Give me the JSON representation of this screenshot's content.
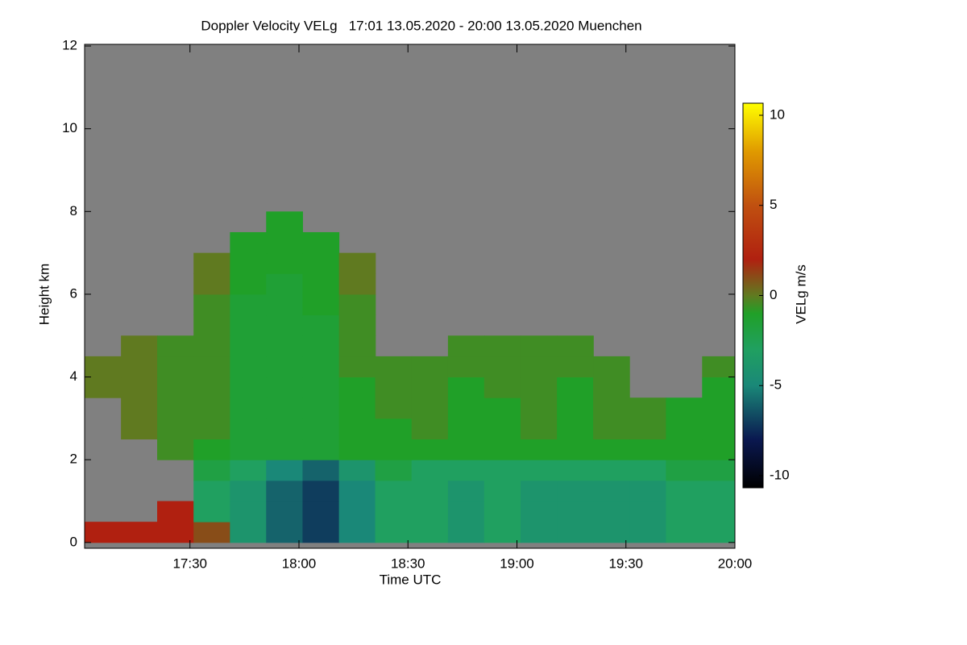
{
  "chart_data": {
    "type": "heatmap",
    "title": "Doppler Velocity VELg   17:01 13.05.2020 - 20:00 13.05.2020 Muenchen",
    "x_label": "Time UTC",
    "y_label": "Height km",
    "colorbar_label": "VELg m/s",
    "xlim": [
      17.0167,
      20.0
    ],
    "xticks": [
      {
        "value": 17.5,
        "label": "17:30"
      },
      {
        "value": 18.0,
        "label": "18:00"
      },
      {
        "value": 18.5,
        "label": "18:30"
      },
      {
        "value": 19.0,
        "label": "19:00"
      },
      {
        "value": 19.5,
        "label": "19:30"
      },
      {
        "value": 20.0,
        "label": "20:00"
      }
    ],
    "ylim": [
      -0.14,
      12.04
    ],
    "yticks": [
      0,
      2,
      4,
      6,
      8,
      10,
      12
    ],
    "clim": [
      -10.67,
      10.67
    ],
    "cticks": [
      -10,
      -5,
      0,
      5,
      10
    ],
    "missing_color": "#808080",
    "colorscale": [
      [
        0,
        "#000000"
      ],
      [
        0.125,
        "#0a1850"
      ],
      [
        0.266,
        "#1a8878"
      ],
      [
        0.36,
        "#20a060"
      ],
      [
        0.453,
        "#20a028"
      ],
      [
        0.5,
        "#607a20"
      ],
      [
        0.594,
        "#b02010"
      ],
      [
        0.734,
        "#c05010"
      ],
      [
        0.875,
        "#e09a00"
      ],
      [
        1,
        "#ffff00"
      ]
    ],
    "x": [
      17.1,
      17.267,
      17.433,
      17.6,
      17.767,
      17.933,
      18.1,
      18.267,
      18.433,
      18.6,
      18.767,
      18.933,
      19.1,
      19.267,
      19.433,
      19.6,
      19.767,
      19.933
    ],
    "y": [
      0.25,
      0.75,
      1.25,
      1.75,
      2.25,
      2.75,
      3.25,
      3.75,
      4.25,
      4.75,
      5.25,
      5.75,
      6.25,
      6.75,
      7.25,
      7.75
    ],
    "z": [
      [
        2,
        2,
        2,
        1,
        -4,
        -6,
        -7,
        -5,
        -3,
        -3,
        -4,
        -3,
        -4,
        -4,
        -4,
        -4,
        -3,
        -3
      ],
      [
        null,
        null,
        2,
        -3,
        -4,
        -6,
        -7,
        -5,
        -3,
        -3,
        -4,
        -3,
        -4,
        -4,
        -4,
        -4,
        -3,
        -3
      ],
      [
        null,
        null,
        null,
        -3,
        -4,
        -6,
        -7,
        -5,
        -3,
        -3,
        -4,
        -3,
        -4,
        -4,
        -4,
        -4,
        -3,
        -3
      ],
      [
        null,
        null,
        null,
        -2,
        -3,
        -5,
        -6,
        -4,
        -2,
        -3,
        -3,
        -3,
        -3,
        -3,
        -3,
        -3,
        -2,
        -2
      ],
      [
        null,
        null,
        -0.5,
        -1,
        -1.5,
        -1.5,
        -1.5,
        -1,
        -1,
        -1,
        -1,
        -1,
        -1,
        -1,
        -1,
        -1,
        -1,
        -1
      ],
      [
        null,
        0,
        -0.5,
        -0.5,
        -1.5,
        -1.5,
        -1.5,
        -1,
        -1,
        -0.5,
        -1,
        -1,
        -0.5,
        -1,
        -0.5,
        -0.5,
        -1,
        -1
      ],
      [
        null,
        0,
        -0.5,
        -0.5,
        -1.5,
        -1.5,
        -1.5,
        -1,
        -0.5,
        -0.5,
        -1,
        -1,
        -0.5,
        -1,
        -0.5,
        -0.5,
        -1,
        -1
      ],
      [
        0,
        0,
        -0.5,
        -0.5,
        -1.5,
        -1.5,
        -1.5,
        -1,
        -0.5,
        -0.5,
        -1,
        -0.5,
        -0.5,
        -1,
        -0.5,
        null,
        null,
        -1
      ],
      [
        0,
        0,
        -0.5,
        -0.5,
        -1.5,
        -1.5,
        -1.5,
        -0.5,
        -0.5,
        -0.5,
        -0.5,
        -0.5,
        -0.5,
        -0.5,
        -0.5,
        null,
        null,
        -0.5
      ],
      [
        null,
        0,
        -0.5,
        -0.5,
        -1.5,
        -1.5,
        -1.5,
        -0.5,
        null,
        null,
        -0.5,
        -0.5,
        -0.5,
        -0.5,
        null,
        null,
        null,
        null
      ],
      [
        null,
        null,
        null,
        -0.5,
        -1.5,
        -1.5,
        -1.5,
        -0.5,
        null,
        null,
        null,
        null,
        null,
        null,
        null,
        null,
        null,
        null
      ],
      [
        null,
        null,
        null,
        -0.5,
        -1.5,
        -1.5,
        -1,
        -0.5,
        null,
        null,
        null,
        null,
        null,
        null,
        null,
        null,
        null,
        null
      ],
      [
        null,
        null,
        null,
        0,
        -1,
        -1.5,
        -1,
        0,
        null,
        null,
        null,
        null,
        null,
        null,
        null,
        null,
        null,
        null
      ],
      [
        null,
        null,
        null,
        0,
        -1,
        -1,
        -1,
        0,
        null,
        null,
        null,
        null,
        null,
        null,
        null,
        null,
        null,
        null
      ],
      [
        null,
        null,
        null,
        null,
        -1,
        -1,
        -1,
        null,
        null,
        null,
        null,
        null,
        null,
        null,
        null,
        null,
        null,
        null
      ],
      [
        null,
        null,
        null,
        null,
        null,
        -1,
        null,
        null,
        null,
        null,
        null,
        null,
        null,
        null,
        null,
        null,
        null,
        null
      ]
    ]
  }
}
